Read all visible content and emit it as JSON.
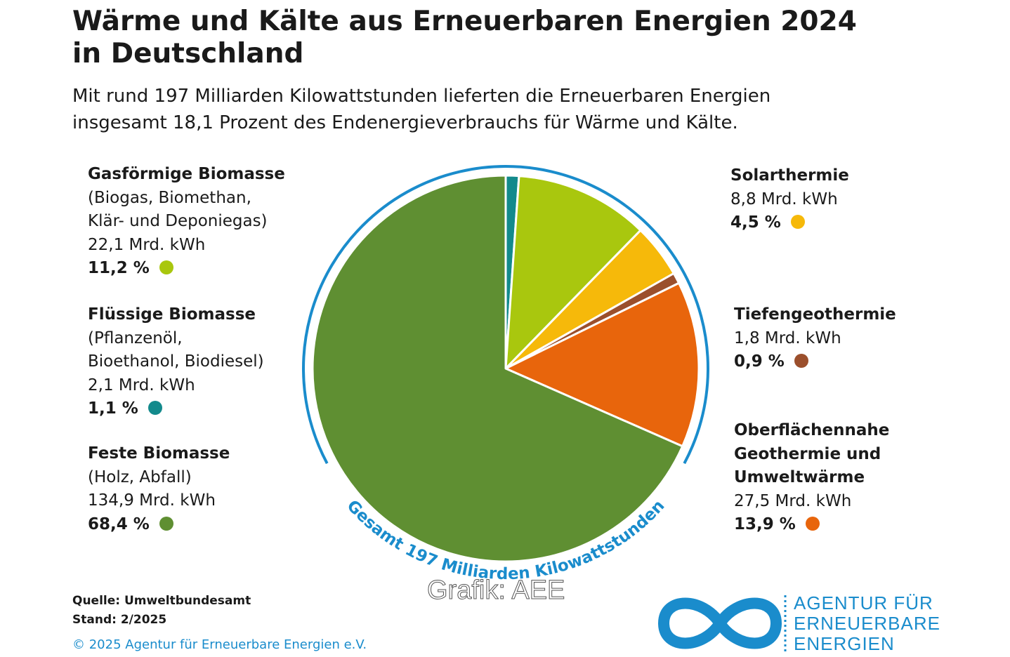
{
  "chart_data": {
    "type": "pie",
    "title": [
      "Wärme und Kälte aus Erneuerbaren Energien 2024",
      "in Deutschland"
    ],
    "subtitle": [
      "Mit rund 197 Milliarden Kilowattstunden lieferten die Erneuerbaren Energien",
      "insgesamt 18,1 Prozent des Endenergieverbrauchs für Wärme und Kälte."
    ],
    "categories": [
      "Flüssige Biomasse",
      "Gasförmige Biomasse",
      "Solarthermie",
      "Tiefengeothermie",
      "Oberflächennahe Geothermie und Umweltwärme",
      "Feste Biomasse"
    ],
    "descriptions": [
      [
        "(Pflanzenöl,",
        "Bioethanol, Biodiesel)"
      ],
      [
        "(Biogas, Biomethan,",
        "Klär- und Deponiegas)"
      ],
      [],
      [],
      [],
      [
        "(Holz, Abfall)"
      ]
    ],
    "amounts": [
      "2,1 Mrd. kWh",
      "22,1 Mrd. kWh",
      "8,8 Mrd. kWh",
      "1,8 Mrd. kWh",
      "27,5 Mrd. kWh",
      "134,9 Mrd. kWh"
    ],
    "values": [
      1.1,
      11.2,
      4.5,
      0.9,
      13.9,
      68.4
    ],
    "value_labels": [
      "1,1 %",
      "11,2 %",
      "4,5 %",
      "0,9 %",
      "13,9 %",
      "68,4 %"
    ],
    "colors": [
      "#138a8c",
      "#a9c70e",
      "#f6b90a",
      "#9b4f2c",
      "#e8650c",
      "#5f8f32"
    ],
    "ring_label": "Gesamt 197 Milliarden Kilowattstunden",
    "ring_color": "#1a8ccc",
    "source": [
      "Quelle: Umweltbundesamt",
      "Stand: 2/2025"
    ],
    "copyright": "© 2025 Agentur für Erneuerbare Energien e.V.",
    "watermark": "Grafik: AEE",
    "logo": [
      "AGENTUR FÜR",
      "ERNEUERBARE",
      "ENERGIEN"
    ]
  }
}
